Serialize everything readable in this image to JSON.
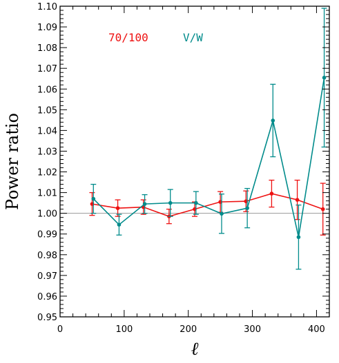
{
  "chart_data": {
    "type": "line",
    "xlabel": "ℓ",
    "ylabel": "Power ratio",
    "xlim": [
      0,
      420
    ],
    "ylim": [
      0.95,
      1.1
    ],
    "x_ticks": [
      0,
      100,
      200,
      300,
      400
    ],
    "y_ticks": [
      0.95,
      0.96,
      0.97,
      0.98,
      0.99,
      1.0,
      1.01,
      1.02,
      1.03,
      1.04,
      1.05,
      1.06,
      1.07,
      1.08,
      1.09,
      1.1
    ],
    "x_minor_step": 20,
    "y_minor_step": 0.002,
    "reference_line": 1.0,
    "grid": false,
    "legend_position": "top-left",
    "series": [
      {
        "name": "70/100",
        "color": "#ee1111",
        "x": [
          50,
          90,
          130,
          170,
          210,
          250,
          290,
          330,
          370,
          410
        ],
        "y": [
          1.0045,
          1.0025,
          1.003,
          0.9985,
          1.002,
          1.0055,
          1.0058,
          1.0095,
          1.0065,
          1.002
        ],
        "err": [
          0.0055,
          0.004,
          0.0035,
          0.0035,
          0.0035,
          0.005,
          0.005,
          0.0065,
          0.0095,
          0.0125
        ]
      },
      {
        "name": "V/W",
        "color": "#008b8b",
        "x": [
          52,
          92,
          132,
          172,
          212,
          252,
          292,
          332,
          372,
          412
        ],
        "y": [
          1.007,
          0.9945,
          1.0045,
          1.005,
          1.005,
          0.9998,
          1.0025,
          1.0448,
          0.9885,
          1.0655
        ],
        "err": [
          0.007,
          0.005,
          0.0045,
          0.0065,
          0.0055,
          0.0095,
          0.0095,
          0.0175,
          0.0155,
          0.0335
        ]
      }
    ]
  }
}
